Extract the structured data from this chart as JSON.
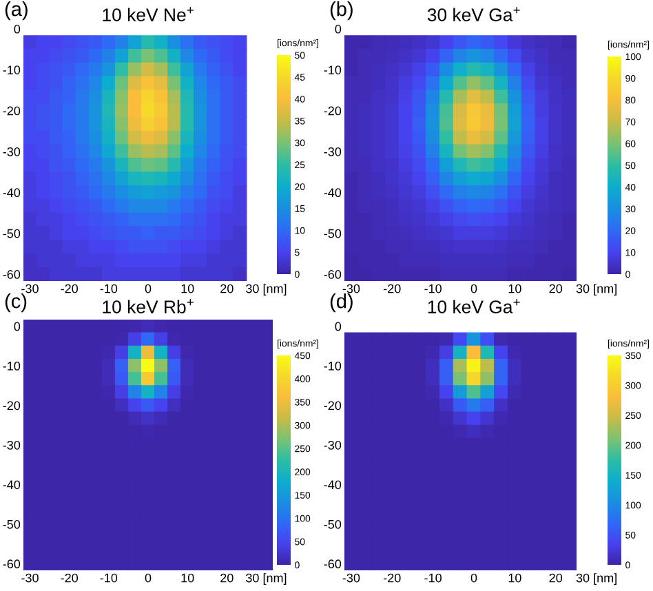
{
  "chart_data": [
    {
      "type": "heatmap",
      "title": "10 keV Ne$^{+}$",
      "annotations": [
        "(a)"
      ],
      "clabel": "[ions/nm²]",
      "clim": [
        0,
        50
      ],
      "cticks": [
        0,
        5,
        10,
        15,
        20,
        25,
        30,
        35,
        40,
        45,
        50
      ],
      "categories": [
        "-30",
        null,
        null,
        "-20",
        null,
        null,
        "-10",
        null,
        null,
        "0",
        null,
        null,
        "10",
        null,
        null,
        "20",
        null,
        null,
        "30 [nm]"
      ],
      "y_categories": [
        "0",
        null,
        null,
        "-10",
        null,
        null,
        "-20",
        null,
        null,
        "-30",
        null,
        null,
        "-40",
        null,
        null,
        "-50",
        null,
        null,
        "-60"
      ],
      "cells": [
        [
          null,
          null,
          null,
          null,
          null,
          null,
          null,
          null,
          null,
          null,
          null,
          null,
          null,
          null,
          null,
          null,
          null,
          null,
          null
        ],
        [
          4,
          5,
          5,
          6,
          7,
          8,
          10,
          13,
          18,
          24,
          21,
          15,
          11,
          8,
          7,
          6,
          5,
          null,
          null
        ],
        [
          5,
          5,
          6,
          7,
          8,
          10,
          13,
          18,
          26,
          30,
          27,
          21,
          14,
          10,
          8,
          6,
          5,
          null,
          null
        ],
        [
          5,
          6,
          7,
          8,
          10,
          12,
          16,
          25,
          32,
          36,
          33,
          26,
          18,
          12,
          9,
          7,
          5,
          null,
          null
        ],
        [
          5,
          6,
          7,
          9,
          11,
          14,
          20,
          29,
          37,
          41,
          38,
          30,
          21,
          14,
          10,
          8,
          6,
          null,
          null
        ],
        [
          6,
          6,
          8,
          9,
          12,
          15,
          22,
          31,
          40,
          44,
          41,
          33,
          23,
          15,
          11,
          8,
          6,
          null,
          null
        ],
        [
          6,
          7,
          8,
          10,
          12,
          16,
          23,
          32,
          40,
          45,
          42,
          34,
          24,
          16,
          11,
          8,
          6,
          null,
          null
        ],
        [
          6,
          7,
          8,
          10,
          12,
          16,
          22,
          31,
          39,
          43,
          41,
          34,
          24,
          16,
          11,
          8,
          6,
          null,
          null
        ],
        [
          6,
          6,
          8,
          9,
          12,
          15,
          21,
          29,
          36,
          39,
          37,
          31,
          22,
          15,
          11,
          8,
          6,
          null,
          null
        ],
        [
          5,
          6,
          7,
          9,
          11,
          14,
          19,
          26,
          32,
          34,
          33,
          28,
          20,
          14,
          10,
          7,
          6,
          null,
          null
        ],
        [
          5,
          5,
          7,
          8,
          10,
          12,
          16,
          22,
          27,
          29,
          28,
          24,
          17,
          12,
          9,
          7,
          5,
          null,
          null
        ],
        [
          4,
          5,
          6,
          7,
          9,
          11,
          14,
          18,
          22,
          23,
          22,
          19,
          15,
          11,
          8,
          6,
          5,
          null,
          null
        ],
        [
          4,
          5,
          6,
          7,
          8,
          10,
          12,
          15,
          17,
          18,
          17,
          16,
          12,
          10,
          7,
          6,
          4,
          null,
          null
        ],
        [
          4,
          4,
          5,
          6,
          7,
          8,
          10,
          12,
          14,
          14,
          14,
          12,
          10,
          8,
          6,
          5,
          4,
          null,
          null
        ],
        [
          3,
          4,
          4,
          5,
          6,
          7,
          8,
          9,
          11,
          11,
          11,
          10,
          8,
          7,
          5,
          4,
          4,
          null,
          null
        ],
        [
          3,
          3,
          4,
          5,
          5,
          6,
          7,
          8,
          8,
          9,
          8,
          8,
          7,
          6,
          5,
          4,
          3,
          null,
          null
        ],
        [
          3,
          3,
          3,
          4,
          4,
          5,
          5,
          6,
          7,
          7,
          7,
          6,
          5,
          5,
          4,
          3,
          3,
          null,
          null
        ],
        [
          2,
          3,
          3,
          3,
          4,
          4,
          4,
          5,
          5,
          5,
          5,
          5,
          4,
          4,
          3,
          3,
          3,
          null,
          null
        ],
        [
          2,
          2,
          3,
          3,
          3,
          3,
          4,
          4,
          4,
          4,
          4,
          4,
          3,
          3,
          3,
          3,
          2,
          null,
          null
        ]
      ]
    },
    {
      "type": "heatmap",
      "title": "30 keV Ga$^{+}$",
      "annotations": [
        "(b)"
      ],
      "clabel": "[ions/nm²]",
      "clim": [
        0,
        100
      ],
      "cticks": [
        0,
        10,
        20,
        30,
        40,
        50,
        60,
        70,
        80,
        90,
        100
      ],
      "categories": [
        "-30",
        null,
        null,
        "-20",
        null,
        null,
        "-10",
        null,
        null,
        "0",
        null,
        null,
        "10",
        null,
        null,
        "20",
        null,
        null,
        "30 [nm]"
      ],
      "y_categories": [
        "0",
        null,
        null,
        "-10",
        null,
        null,
        "-20",
        null,
        null,
        "-30",
        null,
        null,
        "-40",
        null,
        null,
        "-50",
        null,
        null,
        "-60"
      ],
      "cells": [
        [
          null,
          null,
          null,
          null,
          null,
          null,
          null,
          null,
          null,
          null,
          null,
          null,
          null,
          null,
          null,
          null,
          null,
          null,
          null
        ],
        [
          1,
          1,
          2,
          2,
          3,
          4,
          6,
          10,
          15,
          19,
          16,
          11,
          7,
          4,
          3,
          2,
          1,
          null,
          null
        ],
        [
          1,
          2,
          2,
          3,
          4,
          6,
          10,
          18,
          27,
          32,
          28,
          20,
          12,
          6,
          4,
          2,
          2,
          null,
          null
        ],
        [
          1,
          2,
          3,
          4,
          6,
          9,
          16,
          29,
          41,
          48,
          43,
          32,
          19,
          9,
          5,
          3,
          2,
          null,
          null
        ],
        [
          2,
          2,
          3,
          5,
          8,
          12,
          22,
          39,
          55,
          63,
          57,
          43,
          26,
          12,
          6,
          4,
          2,
          null,
          null
        ],
        [
          2,
          2,
          4,
          5,
          9,
          15,
          27,
          47,
          66,
          75,
          69,
          52,
          31,
          15,
          8,
          4,
          3,
          null,
          null
        ],
        [
          2,
          3,
          4,
          6,
          10,
          16,
          30,
          53,
          73,
          83,
          77,
          59,
          35,
          17,
          8,
          5,
          3,
          null,
          null
        ],
        [
          2,
          3,
          4,
          6,
          10,
          17,
          31,
          54,
          74,
          84,
          78,
          60,
          36,
          18,
          9,
          5,
          3,
          null,
          null
        ],
        [
          2,
          3,
          4,
          6,
          10,
          16,
          29,
          50,
          69,
          77,
          72,
          56,
          33,
          17,
          9,
          5,
          3,
          null,
          null
        ],
        [
          2,
          3,
          4,
          6,
          9,
          14,
          26,
          43,
          59,
          65,
          61,
          48,
          29,
          15,
          8,
          4,
          3,
          null,
          null
        ],
        [
          2,
          2,
          4,
          5,
          8,
          12,
          21,
          35,
          46,
          52,
          49,
          39,
          24,
          12,
          7,
          4,
          2,
          null,
          null
        ],
        [
          1,
          2,
          3,
          5,
          7,
          10,
          17,
          27,
          35,
          39,
          37,
          30,
          19,
          10,
          6,
          3,
          2,
          null,
          null
        ],
        [
          1,
          2,
          3,
          4,
          6,
          8,
          13,
          20,
          26,
          28,
          27,
          22,
          14,
          8,
          5,
          3,
          2,
          null,
          null
        ],
        [
          1,
          2,
          2,
          3,
          5,
          6,
          9,
          14,
          18,
          20,
          19,
          15,
          10,
          6,
          4,
          3,
          2,
          null,
          null
        ],
        [
          1,
          1,
          2,
          3,
          4,
          5,
          7,
          9,
          12,
          13,
          12,
          10,
          7,
          5,
          3,
          2,
          1,
          null,
          null
        ],
        [
          1,
          1,
          2,
          2,
          3,
          4,
          5,
          6,
          8,
          8,
          8,
          7,
          5,
          4,
          3,
          2,
          1,
          null,
          null
        ],
        [
          1,
          1,
          1,
          2,
          2,
          3,
          3,
          4,
          5,
          5,
          5,
          4,
          3,
          3,
          2,
          1,
          1,
          null,
          null
        ],
        [
          0,
          1,
          1,
          1,
          2,
          2,
          2,
          3,
          3,
          3,
          3,
          3,
          2,
          2,
          1,
          1,
          1,
          null,
          null
        ],
        [
          0,
          0,
          1,
          1,
          1,
          1,
          1,
          2,
          2,
          2,
          2,
          2,
          1,
          1,
          1,
          1,
          0,
          null,
          null
        ]
      ]
    },
    {
      "type": "heatmap",
      "title": "10 keV Rb$^{+}$",
      "annotations": [
        "(c)"
      ],
      "clabel": "[ions/nm²]",
      "clim": [
        0,
        450
      ],
      "cticks": [
        0,
        50,
        100,
        150,
        200,
        250,
        300,
        350,
        400,
        450
      ],
      "categories": [
        "-30",
        null,
        null,
        "-20",
        null,
        null,
        "-10",
        null,
        null,
        "0",
        null,
        null,
        "10",
        null,
        null,
        "20",
        null,
        null,
        "30 [nm]"
      ],
      "y_categories": [
        "0",
        null,
        null,
        "-10",
        null,
        null,
        "-20",
        null,
        null,
        "-30",
        null,
        null,
        "-40",
        null,
        null,
        "-50",
        null,
        null,
        "-60"
      ],
      "cells": [
        [
          0,
          0,
          0,
          0,
          0,
          0,
          0,
          0,
          5,
          10,
          5,
          0,
          0,
          0,
          0,
          0,
          0,
          0,
          0
        ],
        [
          0,
          0,
          0,
          0,
          0,
          0,
          0,
          5,
          40,
          90,
          40,
          5,
          0,
          0,
          0,
          0,
          0,
          0,
          0
        ],
        [
          0,
          0,
          0,
          0,
          0,
          0,
          5,
          40,
          190,
          350,
          190,
          40,
          5,
          0,
          0,
          0,
          0,
          0,
          0
        ],
        [
          0,
          0,
          0,
          0,
          0,
          0,
          10,
          80,
          280,
          450,
          280,
          80,
          10,
          0,
          0,
          0,
          0,
          0,
          0
        ],
        [
          0,
          0,
          0,
          0,
          0,
          0,
          10,
          70,
          240,
          380,
          240,
          70,
          10,
          0,
          0,
          0,
          0,
          0,
          0
        ],
        [
          0,
          0,
          0,
          0,
          0,
          0,
          5,
          40,
          120,
          190,
          120,
          40,
          5,
          0,
          0,
          0,
          0,
          0,
          0
        ],
        [
          0,
          0,
          0,
          0,
          0,
          0,
          0,
          15,
          45,
          70,
          45,
          15,
          0,
          0,
          0,
          0,
          0,
          0,
          0
        ],
        [
          0,
          0,
          0,
          0,
          0,
          0,
          0,
          0,
          10,
          20,
          10,
          0,
          0,
          0,
          0,
          0,
          0,
          0,
          0
        ],
        [
          0,
          0,
          0,
          0,
          0,
          0,
          0,
          0,
          0,
          5,
          0,
          0,
          0,
          0,
          0,
          0,
          0,
          0,
          0
        ],
        [
          0,
          0,
          0,
          0,
          0,
          0,
          0,
          0,
          0,
          0,
          0,
          0,
          0,
          0,
          0,
          0,
          0,
          0,
          0
        ],
        [
          0,
          0,
          0,
          0,
          0,
          0,
          0,
          0,
          0,
          0,
          0,
          0,
          0,
          0,
          0,
          0,
          0,
          0,
          0
        ],
        [
          0,
          0,
          0,
          0,
          0,
          0,
          0,
          0,
          0,
          0,
          0,
          0,
          0,
          0,
          0,
          0,
          0,
          0,
          0
        ],
        [
          0,
          0,
          0,
          0,
          0,
          0,
          0,
          0,
          0,
          0,
          0,
          0,
          0,
          0,
          0,
          0,
          0,
          0,
          0
        ],
        [
          0,
          0,
          0,
          0,
          0,
          0,
          0,
          0,
          0,
          0,
          0,
          0,
          0,
          0,
          0,
          0,
          0,
          0,
          0
        ],
        [
          0,
          0,
          0,
          0,
          0,
          0,
          0,
          0,
          0,
          0,
          0,
          0,
          0,
          0,
          0,
          0,
          0,
          0,
          0
        ],
        [
          0,
          0,
          0,
          0,
          0,
          0,
          0,
          0,
          0,
          0,
          0,
          0,
          0,
          0,
          0,
          0,
          0,
          0,
          0
        ],
        [
          0,
          0,
          0,
          0,
          0,
          0,
          0,
          0,
          0,
          0,
          0,
          0,
          0,
          0,
          0,
          0,
          0,
          0,
          0
        ],
        [
          0,
          0,
          0,
          0,
          0,
          0,
          0,
          0,
          0,
          0,
          0,
          0,
          0,
          0,
          0,
          0,
          0,
          0,
          0
        ],
        [
          0,
          0,
          0,
          0,
          0,
          0,
          0,
          0,
          0,
          0,
          0,
          0,
          0,
          0,
          0,
          0,
          0,
          0,
          0
        ]
      ]
    },
    {
      "type": "heatmap",
      "title": "10 keV Ga$^{+}$",
      "annotations": [
        "(d)"
      ],
      "clabel": "[ions/nm²]",
      "clim": [
        0,
        350
      ],
      "cticks": [
        0,
        50,
        100,
        150,
        200,
        250,
        300,
        350
      ],
      "categories": [
        "-30",
        null,
        null,
        "-20",
        null,
        null,
        "-10",
        null,
        null,
        "0",
        null,
        null,
        "10",
        null,
        null,
        "20",
        null,
        null,
        "30 [nm]"
      ],
      "y_categories": [
        "0",
        null,
        null,
        "-10",
        null,
        null,
        "-20",
        null,
        null,
        "-30",
        null,
        null,
        "-40",
        null,
        null,
        "-50",
        null,
        null,
        "-60"
      ],
      "cells": [
        [
          null,
          null,
          null,
          null,
          null,
          null,
          null,
          null,
          null,
          null,
          null,
          null,
          null,
          null,
          null,
          null,
          null,
          null,
          null
        ],
        [
          0,
          0,
          0,
          0,
          0,
          0,
          0,
          5,
          40,
          110,
          45,
          5,
          0,
          0,
          0,
          0,
          0,
          null,
          null
        ],
        [
          0,
          0,
          0,
          0,
          0,
          0,
          5,
          30,
          150,
          280,
          160,
          35,
          5,
          0,
          0,
          0,
          0,
          null,
          null
        ],
        [
          0,
          0,
          0,
          0,
          0,
          0,
          10,
          60,
          230,
          340,
          240,
          65,
          10,
          0,
          0,
          0,
          0,
          null,
          null
        ],
        [
          0,
          0,
          0,
          0,
          0,
          0,
          10,
          60,
          210,
          310,
          220,
          65,
          10,
          0,
          0,
          0,
          0,
          null,
          null
        ],
        [
          0,
          0,
          0,
          0,
          0,
          0,
          5,
          35,
          120,
          190,
          125,
          40,
          5,
          0,
          0,
          0,
          0,
          null,
          null
        ],
        [
          0,
          0,
          0,
          0,
          0,
          0,
          0,
          15,
          55,
          85,
          60,
          15,
          0,
          0,
          0,
          0,
          0,
          null,
          null
        ],
        [
          0,
          0,
          0,
          0,
          0,
          0,
          0,
          5,
          20,
          35,
          20,
          5,
          0,
          0,
          0,
          0,
          0,
          null,
          null
        ],
        [
          0,
          0,
          0,
          0,
          0,
          0,
          0,
          0,
          5,
          10,
          5,
          0,
          0,
          0,
          0,
          0,
          0,
          null,
          null
        ],
        [
          0,
          0,
          0,
          0,
          0,
          0,
          0,
          0,
          0,
          0,
          0,
          0,
          0,
          0,
          0,
          0,
          0,
          null,
          null
        ],
        [
          0,
          0,
          0,
          0,
          0,
          0,
          0,
          0,
          0,
          0,
          0,
          0,
          0,
          0,
          0,
          0,
          0,
          null,
          null
        ],
        [
          0,
          0,
          0,
          0,
          0,
          0,
          0,
          0,
          0,
          0,
          0,
          0,
          0,
          0,
          0,
          0,
          0,
          null,
          null
        ],
        [
          0,
          0,
          0,
          0,
          0,
          0,
          0,
          0,
          0,
          0,
          0,
          0,
          0,
          0,
          0,
          0,
          0,
          null,
          null
        ],
        [
          0,
          0,
          0,
          0,
          0,
          0,
          0,
          0,
          0,
          0,
          0,
          0,
          0,
          0,
          0,
          0,
          0,
          null,
          null
        ],
        [
          0,
          0,
          0,
          0,
          0,
          0,
          0,
          0,
          0,
          0,
          0,
          0,
          0,
          0,
          0,
          0,
          0,
          null,
          null
        ],
        [
          0,
          0,
          0,
          0,
          0,
          0,
          0,
          0,
          0,
          0,
          0,
          0,
          0,
          0,
          0,
          0,
          0,
          null,
          null
        ],
        [
          0,
          0,
          0,
          0,
          0,
          0,
          0,
          0,
          0,
          0,
          0,
          0,
          0,
          0,
          0,
          0,
          0,
          null,
          null
        ],
        [
          0,
          0,
          0,
          0,
          0,
          0,
          0,
          0,
          0,
          0,
          0,
          0,
          0,
          0,
          0,
          0,
          0,
          null,
          null
        ],
        [
          0,
          0,
          0,
          0,
          0,
          0,
          0,
          0,
          0,
          0,
          0,
          0,
          0,
          0,
          0,
          0,
          0,
          null,
          null
        ]
      ]
    }
  ]
}
